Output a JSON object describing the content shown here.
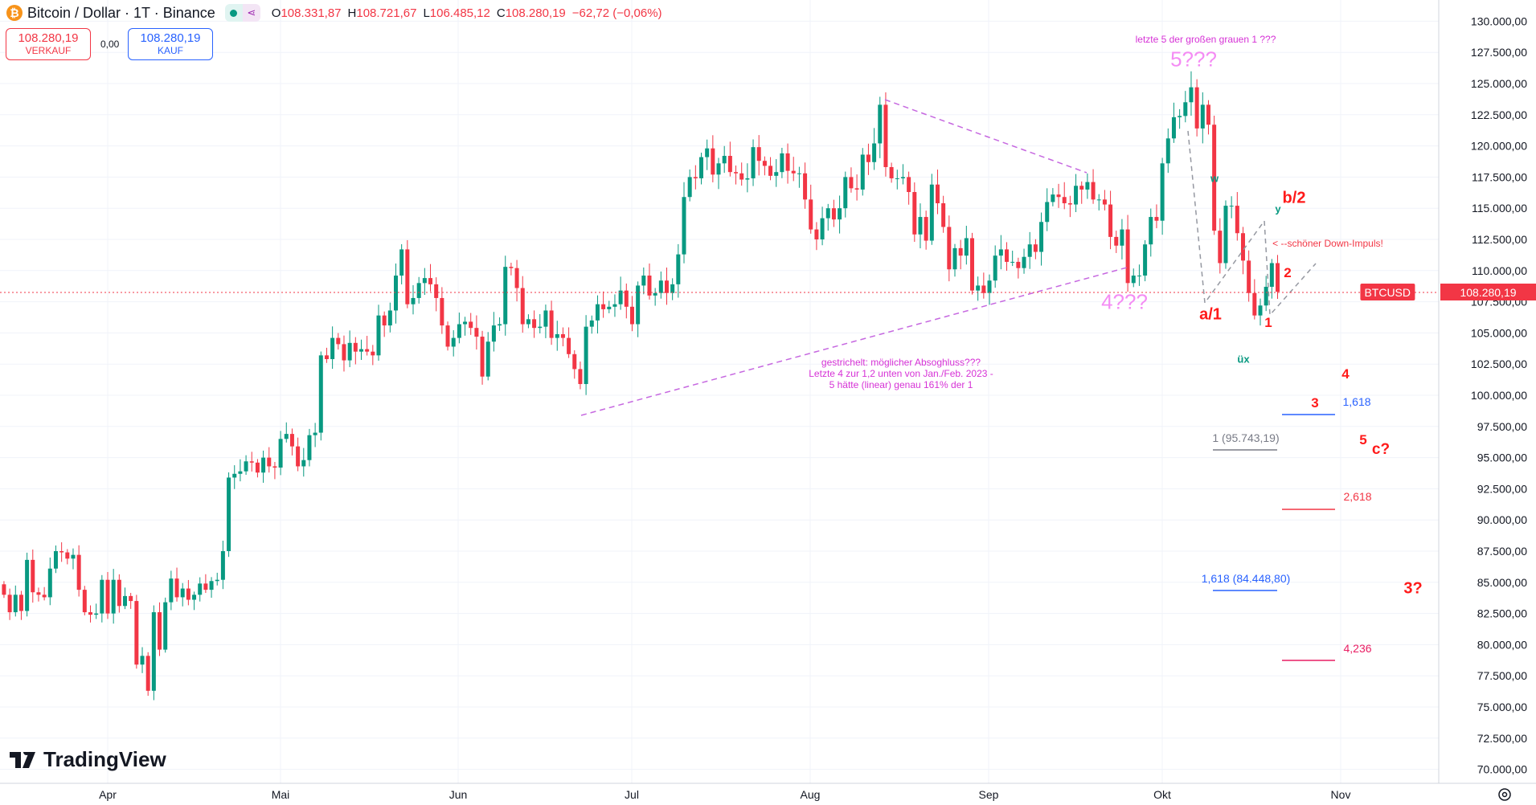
{
  "header": {
    "coin_icon": "bitcoin-icon",
    "symbol_title": "Bitcoin / Dollar · 1T · Binance",
    "ohlc": {
      "o_label": "O",
      "o": "108.331,87",
      "h_label": "H",
      "h": "108.721,67",
      "l_label": "L",
      "l": "106.485,12",
      "c_label": "C",
      "c": "108.280,19",
      "change": "−62,72 (−0,06%)"
    }
  },
  "trade": {
    "sell_price": "108.280,19",
    "sell_label": "VERKAUF",
    "spread": "0,00",
    "buy_price": "108.280,19",
    "buy_label": "KAUF"
  },
  "branding": {
    "logo_text": "TradingView"
  },
  "colors": {
    "up": "#089981",
    "down": "#f23645",
    "annotation_magenta": "#d632d6",
    "wave_pink": "#f48cf4",
    "wave_red": "#ff1a1a",
    "fib_blue": "#2962ff",
    "grid": "#f0f3fa"
  },
  "chart_data": {
    "type": "candlestick",
    "title": "Bitcoin / Dollar · 1T · Binance",
    "interval": "1 day",
    "start_date": "2025-03-14",
    "ylim": [
      70000,
      130000
    ],
    "grid": true,
    "x_tick_labels": [
      "Apr",
      "Mai",
      "Jun",
      "Jul",
      "Aug",
      "Sep",
      "Okt",
      "Nov"
    ],
    "y_tick_labels": [
      "130.000,00",
      "127.500,00",
      "125.000,00",
      "122.500,00",
      "120.000,00",
      "117.500,00",
      "115.000,00",
      "112.500,00",
      "110.000,00",
      "107.500,00",
      "105.000,00",
      "102.500,00",
      "100.000,00",
      "97.500,00",
      "95.000,00",
      "92.500,00",
      "90.000,00",
      "87.500,00",
      "85.000,00",
      "82.500,00",
      "80.000,00",
      "77.500,00",
      "75.000,00",
      "72.500,00",
      "70.000,00"
    ],
    "daily_close_thousands": [
      84.0,
      82.6,
      84.0,
      82.7,
      86.8,
      84.2,
      84.0,
      83.8,
      86.1,
      87.5,
      87.4,
      86.9,
      87.2,
      84.4,
      82.6,
      82.4,
      82.5,
      85.2,
      82.5,
      85.2,
      83.1,
      83.9,
      83.5,
      78.4,
      79.1,
      76.3,
      82.6,
      79.6,
      83.4,
      85.3,
      83.8,
      84.5,
      83.6,
      84.0,
      84.9,
      84.4,
      85.1,
      85.2,
      87.5,
      93.4,
      93.7,
      93.9,
      94.7,
      94.6,
      93.8,
      95.0,
      94.3,
      94.2,
      96.5,
      96.9,
      95.9,
      94.3,
      94.8,
      96.8,
      97.0,
      103.2,
      102.9,
      104.6,
      104.1,
      102.8,
      104.2,
      103.5,
      103.7,
      103.5,
      103.2,
      106.4,
      105.6,
      106.8,
      109.6,
      111.7,
      107.3,
      107.8,
      109.0,
      109.4,
      108.9,
      107.8,
      105.6,
      103.9,
      104.6,
      105.7,
      105.9,
      105.4,
      104.7,
      101.5,
      104.3,
      105.6,
      105.7,
      110.3,
      110.2,
      108.6,
      105.7,
      106.1,
      105.4,
      105.5,
      106.8,
      104.6,
      104.9,
      104.6,
      103.3,
      102.1,
      100.9,
      105.5,
      106.0,
      107.3,
      106.9,
      107.1,
      107.3,
      108.4,
      107.1,
      105.7,
      108.8,
      109.6,
      108.0,
      108.2,
      109.2,
      108.2,
      108.9,
      111.3,
      115.9,
      117.5,
      117.4,
      119.1,
      119.8,
      117.7,
      118.6,
      119.2,
      117.9,
      117.8,
      117.3,
      117.4,
      119.9,
      118.8,
      118.4,
      117.6,
      117.9,
      119.4,
      118.0,
      117.8,
      117.8,
      115.7,
      113.3,
      112.5,
      114.2,
      115.0,
      114.1,
      115.0,
      117.5,
      116.6,
      116.5,
      119.3,
      118.7,
      120.2,
      123.3,
      118.3,
      117.4,
      117.4,
      117.5,
      116.3,
      112.9,
      114.3,
      112.4,
      116.9,
      115.4,
      113.5,
      110.1,
      111.8,
      111.2,
      112.6,
      108.4,
      108.8,
      108.2,
      109.2,
      111.2,
      111.7,
      110.7,
      110.7,
      110.2,
      111.1,
      112.1,
      111.5,
      113.9,
      115.5,
      116.1,
      115.9,
      115.4,
      115.3,
      116.8,
      116.5,
      117.1,
      115.7,
      115.7,
      115.3,
      112.7,
      112.0,
      113.3,
      109.0,
      109.6,
      109.6,
      112.1,
      114.3,
      114.0,
      118.6,
      120.6,
      122.3,
      122.4,
      123.5,
      124.7,
      121.4,
      123.3,
      121.7,
      113.2,
      110.6,
      115.2,
      115.2,
      113.0,
      110.8,
      108.2,
      106.4,
      107.2,
      108.7,
      110.6,
      108.3
    ],
    "last_price": {
      "symbol": "BTCUSD",
      "value": "108.280,19"
    }
  },
  "annotations": {
    "top_note": "letzte 5 der großen grauen 1 ???",
    "wave_5": "5???",
    "wave_4": "4???",
    "note_lines": [
      "gestrichelt: möglicher Absoghluss???",
      "Letzte 4 zur 1,2 unten von Jan./Feb. 2023 -",
      "5 hätte (linear) genau 161% der 1"
    ],
    "w": "w",
    "y": "y",
    "ux": "üx",
    "b2": "b/2",
    "a1": "a/1",
    "two": "2",
    "one": "1",
    "four": "4",
    "three": "3",
    "down_impulse": "< --schöner Down-Impuls!",
    "fib_1618_small": "1,618",
    "fib_1": "1 (95.743,19)",
    "five": "5",
    "c": "c?",
    "fib_2618": "2,618",
    "fib_1618": "1,618 (84.448,80)",
    "three_q": "3?",
    "fib_4236": "4,236"
  }
}
